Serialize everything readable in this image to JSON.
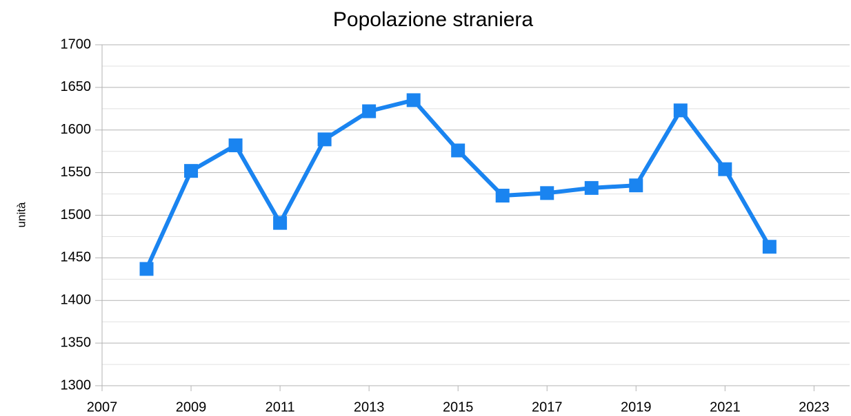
{
  "chart_data": {
    "type": "line",
    "title": "Popolazione straniera",
    "y_label": "unità",
    "x": [
      2008,
      2009,
      2010,
      2011,
      2012,
      2013,
      2014,
      2015,
      2016,
      2017,
      2018,
      2019,
      2020,
      2021,
      2022
    ],
    "series": [
      {
        "name": "Popolazione straniera",
        "color": "#1a84f0",
        "values": [
          1437,
          1552,
          1582,
          1491,
          1589,
          1622,
          1635,
          1576,
          1523,
          1526,
          1532,
          1535,
          1623,
          1554,
          1463
        ]
      }
    ],
    "xlim": [
      2007,
      2023.8
    ],
    "xticks": [
      2007,
      2009,
      2011,
      2013,
      2015,
      2017,
      2019,
      2021,
      2023
    ],
    "ylim": [
      1300,
      1700
    ],
    "yticks": [
      1300,
      1350,
      1400,
      1450,
      1500,
      1550,
      1600,
      1650,
      1700
    ],
    "grid": true,
    "minor_grid": true
  }
}
